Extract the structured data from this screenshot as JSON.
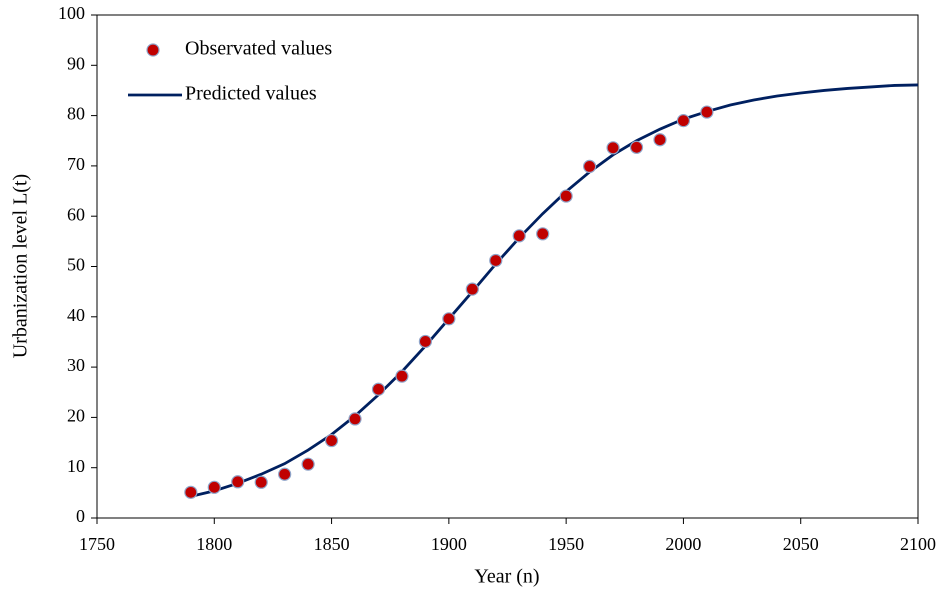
{
  "chart_data": {
    "type": "scatter",
    "xlabel": "Year (n)",
    "ylabel": "Urbanization level L(t)",
    "xlim": [
      1750,
      2100
    ],
    "xticks": [
      1750,
      1800,
      1850,
      1900,
      1950,
      2000,
      2050,
      2100
    ],
    "ylim": [
      0,
      100
    ],
    "yticks": [
      0,
      10,
      20,
      30,
      40,
      50,
      60,
      70,
      80,
      90,
      100
    ],
    "legend": "upper-left",
    "series": [
      {
        "name": "Observated values",
        "type": "scatter",
        "color": "#c00000",
        "x": [
          1790,
          1800,
          1810,
          1820,
          1830,
          1840,
          1850,
          1860,
          1870,
          1880,
          1890,
          1900,
          1910,
          1920,
          1930,
          1940,
          1950,
          1960,
          1970,
          1980,
          1990,
          2000,
          2010
        ],
        "values": [
          5.1,
          6.1,
          7.2,
          7.1,
          8.7,
          10.7,
          15.4,
          19.7,
          25.6,
          28.2,
          35.1,
          39.6,
          45.5,
          51.2,
          56.1,
          56.5,
          64.0,
          69.9,
          73.6,
          73.7,
          75.2,
          79.0,
          80.7
        ]
      },
      {
        "name": "Predicted values",
        "type": "line",
        "color": "#002060",
        "x": [
          1790,
          1800,
          1810,
          1820,
          1830,
          1840,
          1850,
          1860,
          1870,
          1880,
          1890,
          1900,
          1910,
          1920,
          1930,
          1940,
          1950,
          1960,
          1970,
          1980,
          1990,
          2000,
          2010,
          2020,
          2030,
          2040,
          2050,
          2060,
          2070,
          2080,
          2090,
          2100
        ],
        "values": [
          4.3,
          5.4,
          6.9,
          8.7,
          10.8,
          13.5,
          16.6,
          20.3,
          24.5,
          29.1,
          34.2,
          39.6,
          45.0,
          50.5,
          55.7,
          60.5,
          64.9,
          68.8,
          72.2,
          75.0,
          77.3,
          79.3,
          80.8,
          82.1,
          83.1,
          83.9,
          84.5,
          85.0,
          85.4,
          85.7,
          86.0,
          86.1
        ]
      }
    ]
  }
}
